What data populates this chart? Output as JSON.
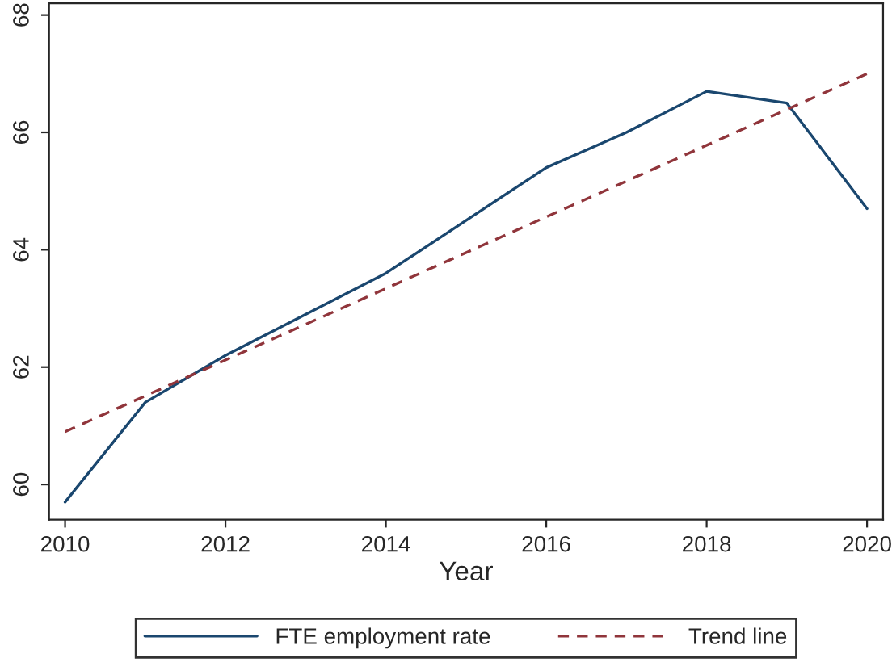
{
  "chart_data": {
    "type": "line",
    "xlabel": "Year",
    "x": [
      2010,
      2011,
      2012,
      2014,
      2016,
      2017,
      2018,
      2019,
      2020
    ],
    "series": [
      {
        "name": "FTE employment rate",
        "color": "#1a476f",
        "line_style": "solid",
        "values": [
          59.7,
          61.4,
          62.2,
          63.6,
          65.4,
          66.0,
          66.7,
          66.5,
          64.7
        ]
      },
      {
        "name": "Trend line",
        "color": "#90353b",
        "line_style": "dashed",
        "x": [
          2010,
          2020
        ],
        "values": [
          60.9,
          67.0
        ]
      }
    ],
    "xlim": [
      2009.8,
      2020.2
    ],
    "xticks": [
      2010,
      2012,
      2014,
      2016,
      2018,
      2020
    ],
    "ylim": [
      59.4,
      68.2
    ],
    "yticks": [
      60,
      62,
      64,
      66,
      68
    ],
    "grid": false,
    "legend": "bottom"
  }
}
